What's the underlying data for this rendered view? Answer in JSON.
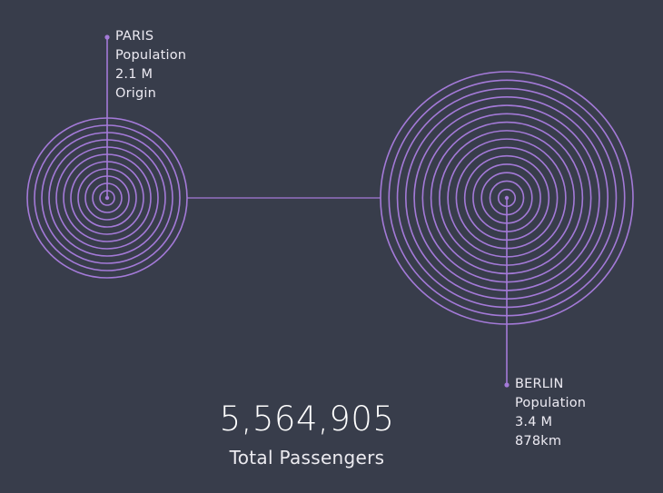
{
  "accent_color": "#a47ad8",
  "background_color": "#383d4b",
  "origin": {
    "name": "PARIS",
    "population_label": "Population",
    "population_value": "2.1 M",
    "note": "Origin",
    "ring_count": 11
  },
  "destination": {
    "name": "BERLIN",
    "population_label": "Population",
    "population_value": "3.4 M",
    "note": "878km",
    "ring_count": 15
  },
  "summary": {
    "total_value": "5,564,905",
    "total_label": "Total Passengers"
  }
}
